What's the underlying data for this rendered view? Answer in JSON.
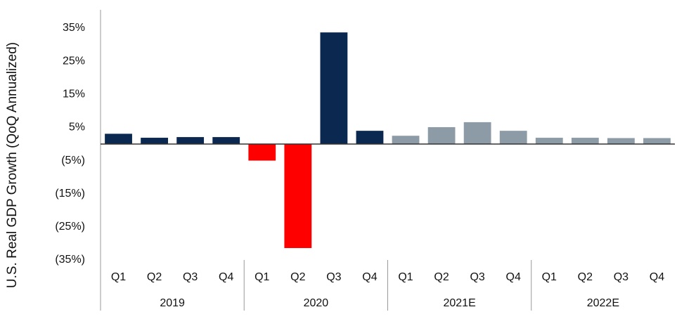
{
  "chart_data": {
    "type": "bar",
    "ylabel": "U.S. Real GDP Growth (QoQ Annualized)",
    "categories": [
      "Q1",
      "Q2",
      "Q3",
      "Q4",
      "Q1",
      "Q2",
      "Q3",
      "Q4",
      "Q1",
      "Q2",
      "Q3",
      "Q4",
      "Q1",
      "Q2",
      "Q3",
      "Q4"
    ],
    "groups": [
      "2019",
      "2020",
      "2021E",
      "2022E"
    ],
    "values": [
      3.1,
      1.9,
      2.1,
      2.1,
      -5.0,
      -31.4,
      33.7,
      4.0,
      2.5,
      5.1,
      6.6,
      4.0,
      1.9,
      1.9,
      1.8,
      1.8
    ],
    "colors": [
      "#0b2850",
      "#0b2850",
      "#0b2850",
      "#0b2850",
      "#ff0000",
      "#ff0000",
      "#0b2850",
      "#0b2850",
      "#8c9ba6",
      "#8c9ba6",
      "#8c9ba6",
      "#8c9ba6",
      "#8c9ba6",
      "#8c9ba6",
      "#8c9ba6",
      "#8c9ba6"
    ],
    "ylim": [
      -35,
      35
    ],
    "yticks": [
      {
        "value": 35,
        "label": "35%"
      },
      {
        "value": 25,
        "label": "25%"
      },
      {
        "value": 15,
        "label": "15%"
      },
      {
        "value": 5,
        "label": "5%"
      },
      {
        "value": -5,
        "label": "(5%)"
      },
      {
        "value": -15,
        "label": "(15%)"
      },
      {
        "value": -25,
        "label": "(25%)"
      },
      {
        "value": -35,
        "label": "(35%)"
      }
    ],
    "grid": false
  }
}
